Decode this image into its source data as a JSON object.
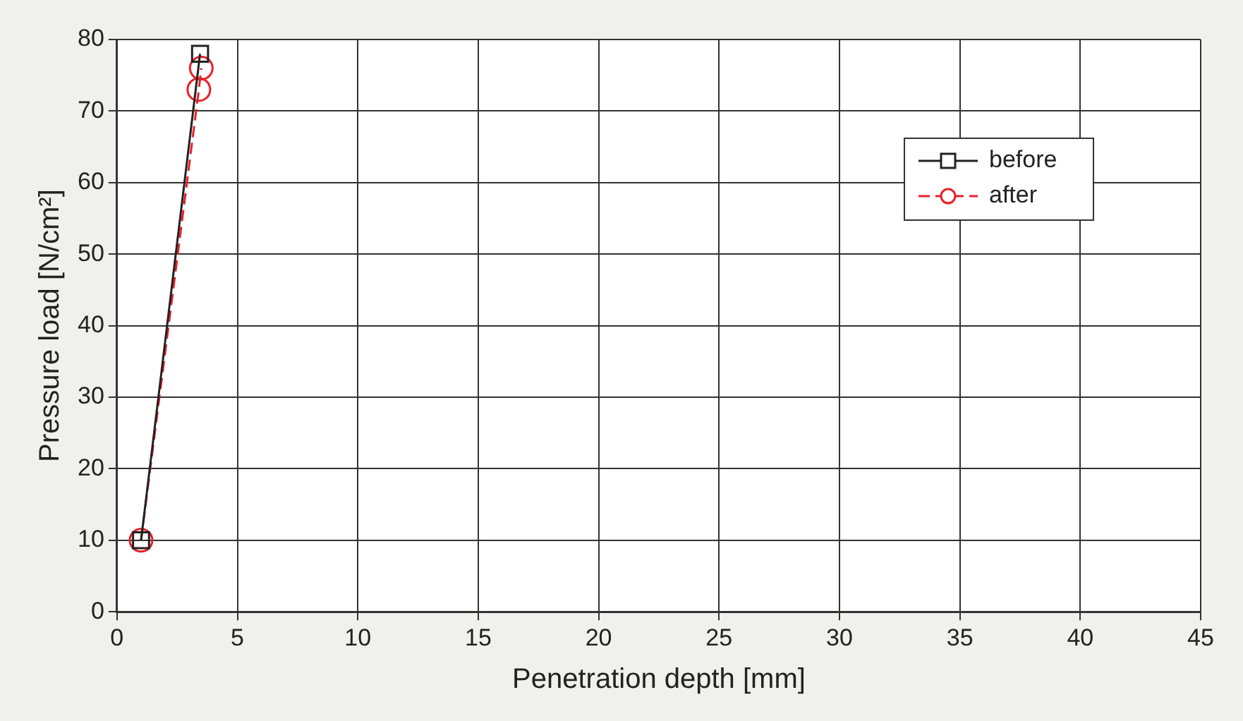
{
  "chart_data": {
    "type": "line",
    "xlabel": "Penetration depth [mm]",
    "ylabel": "Pressure load [N/cm²]",
    "xlim": [
      0,
      45
    ],
    "xticks": [
      0,
      5,
      10,
      15,
      20,
      25,
      30,
      35,
      40,
      45
    ],
    "ylim": [
      0,
      80
    ],
    "yticks": [
      0,
      10,
      20,
      30,
      40,
      50,
      60,
      70,
      80
    ],
    "grid": true,
    "legend": "top right",
    "series": [
      {
        "name": "before",
        "color": "#222222",
        "marker": "square",
        "line_style": "solid",
        "x": [
          1,
          3.45
        ],
        "values": [
          10,
          78
        ]
      },
      {
        "name": "after",
        "color": "#e8202a",
        "marker": "circle",
        "line_style": "dashed",
        "x": [
          1,
          3.4,
          3.5
        ],
        "values": [
          10,
          73,
          76
        ]
      }
    ]
  }
}
